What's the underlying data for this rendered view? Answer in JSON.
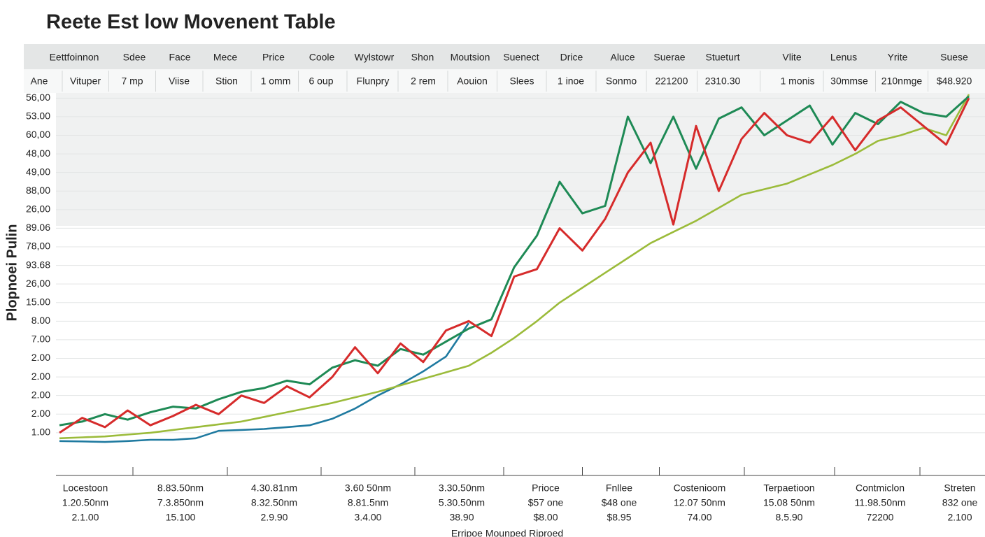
{
  "title": "Reete Est low Movenent Table",
  "header": {
    "row1": [
      "Eettfoinnon",
      "Sdee",
      "Face",
      "Mece",
      "Price",
      "Coole",
      "Wylstowr",
      "Shon",
      "Moutsion",
      "Suenect",
      "Drice",
      "Aluce",
      "Suerae",
      "Stueturt",
      "Vlite",
      "Lenus",
      "Yrite",
      "Suese"
    ],
    "row2": [
      "Ane",
      "Vituper",
      "7 mp",
      "Viise",
      "Stion",
      "1 omm",
      "6 oup",
      "Flunpry",
      "2 rem",
      "Aouion",
      "Slees",
      "1 inoe",
      "Sonmo",
      "221200",
      "2310.30",
      "1 monis",
      "30mmse",
      "210nmge",
      "$48.920"
    ]
  },
  "chart_data": {
    "type": "line",
    "y_label": "Plopnoei Pulin",
    "x_label": "Erripoe Mounped Riproed",
    "x": [
      0,
      1,
      2,
      3,
      4,
      5,
      6,
      7,
      8,
      9,
      10,
      11,
      12,
      13,
      14,
      15,
      16,
      17,
      18,
      19,
      20,
      21,
      22,
      23,
      24,
      25,
      26,
      27,
      28,
      29,
      30,
      31,
      32,
      33,
      34,
      35,
      36,
      37,
      38,
      39,
      40
    ],
    "xlim": [
      0,
      40
    ],
    "ylim": [
      -2.3,
      18.2
    ],
    "yticks": [
      {
        "value": 18,
        "label": "56,00"
      },
      {
        "value": 17,
        "label": "53.00"
      },
      {
        "value": 16,
        "label": "60,00"
      },
      {
        "value": 15,
        "label": "48,00"
      },
      {
        "value": 14,
        "label": "49,00"
      },
      {
        "value": 13,
        "label": "88,00"
      },
      {
        "value": 12,
        "label": "26,00"
      },
      {
        "value": 11,
        "label": "89.06"
      },
      {
        "value": 10,
        "label": "78,00"
      },
      {
        "value": 9,
        "label": "93.68"
      },
      {
        "value": 8,
        "label": "26,00"
      },
      {
        "value": 7,
        "label": "15.00"
      },
      {
        "value": 6,
        "label": "8.00"
      },
      {
        "value": 5,
        "label": "7.00"
      },
      {
        "value": 4,
        "label": "2.00"
      },
      {
        "value": 3,
        "label": "2.00"
      },
      {
        "value": 2,
        "label": "2.00"
      },
      {
        "value": 1,
        "label": "2.00"
      },
      {
        "value": 0,
        "label": "1.00"
      }
    ],
    "series": [
      {
        "color": "#1f7aa0",
        "values": [
          -0.45,
          -0.47,
          -0.5,
          -0.45,
          -0.38,
          -0.38,
          -0.3,
          0.1,
          0.15,
          0.2,
          0.3,
          0.4,
          0.75,
          1.3,
          2.0,
          2.6,
          3.3,
          4.1,
          5.9,
          null,
          null,
          null,
          null,
          null,
          null,
          null,
          null,
          null,
          null,
          null,
          null,
          null,
          null,
          null,
          null,
          null,
          null,
          null,
          null,
          null,
          null
        ]
      },
      {
        "color": "#9bbb3a",
        "values": [
          -0.3,
          -0.25,
          -0.2,
          -0.1,
          0,
          0.15,
          0.3,
          0.45,
          0.6,
          0.85,
          1.1,
          1.35,
          1.6,
          1.9,
          2.2,
          2.55,
          2.9,
          3.25,
          3.6,
          4.3,
          5.1,
          6.0,
          7.0,
          7.8,
          8.6,
          9.4,
          10.2,
          10.8,
          11.4,
          12.1,
          12.8,
          13.1,
          13.4,
          13.9,
          14.4,
          15.0,
          15.7,
          16.0,
          16.4,
          16.0,
          18.2
        ]
      },
      {
        "color": "#1e8a55",
        "values": [
          0.4,
          0.6,
          1.0,
          0.7,
          1.1,
          1.4,
          1.3,
          1.8,
          2.2,
          2.4,
          2.8,
          2.6,
          3.5,
          3.9,
          3.6,
          4.5,
          4.2,
          4.9,
          5.6,
          6.1,
          8.9,
          10.6,
          13.5,
          11.8,
          12.2,
          17.0,
          14.5,
          17.0,
          14.2,
          16.9,
          17.5,
          16.0,
          16.8,
          17.6,
          15.5,
          17.2,
          16.6,
          17.8,
          17.2,
          17.0,
          18.1
        ]
      },
      {
        "color": "#d62b2b",
        "values": [
          0,
          0.8,
          0.3,
          1.2,
          0.4,
          0.9,
          1.5,
          1.0,
          2.0,
          1.6,
          2.5,
          1.9,
          3.0,
          4.6,
          3.2,
          4.8,
          3.8,
          5.5,
          6.0,
          5.2,
          8.4,
          8.8,
          11.0,
          9.8,
          11.5,
          14.0,
          15.6,
          11.2,
          16.5,
          13.0,
          15.8,
          17.2,
          16.0,
          15.6,
          17.0,
          15.2,
          16.8,
          17.5,
          16.5,
          15.5,
          18.0
        ]
      }
    ]
  },
  "footer": {
    "columns": [
      [
        "Locestoon",
        "1.20.50nm",
        "2.1.00"
      ],
      [
        "8.83.50nm",
        "7.3.850nm",
        "15.100"
      ],
      [
        "4.30.81nm",
        "8.32.50nm",
        "2.9.90"
      ],
      [
        "3.60 50nm",
        "8.81.5nm",
        "3.4.00"
      ],
      [
        "3.30.50nm",
        "5.30.50nm",
        "38.90"
      ],
      [
        "Prioce",
        "$57 one",
        "$8.00"
      ],
      [
        "Fnllee",
        "$48 one",
        "$8.95"
      ],
      [
        "Costenioom",
        "12.07 50nm",
        "74.00"
      ],
      [
        "Terpaetioon",
        "15.08 50nm",
        "8.5.90"
      ],
      [
        "Contmiclon",
        "11.98.50nm",
        "72200"
      ],
      [
        "Streten",
        "832 one",
        "2.100"
      ]
    ]
  }
}
